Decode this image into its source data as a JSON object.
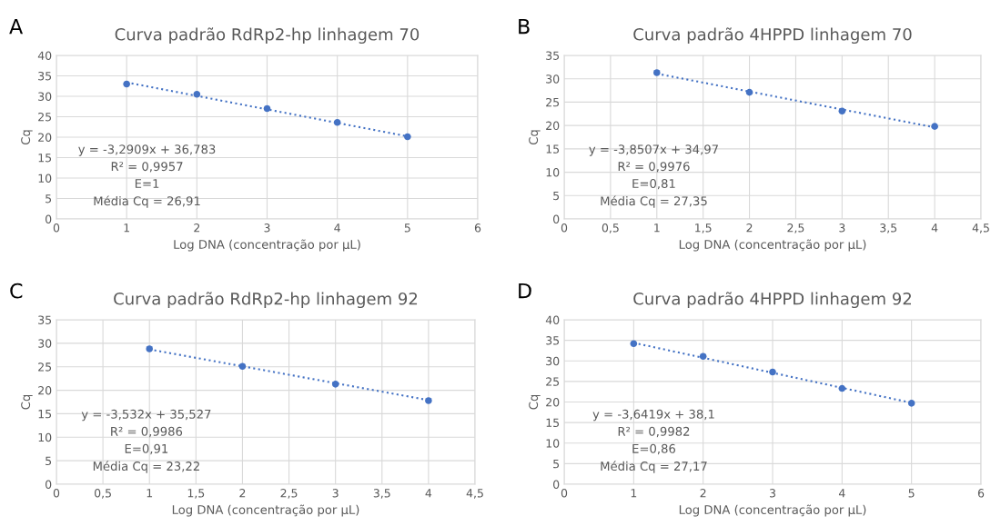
{
  "chart_data": [
    {
      "type": "scatter",
      "title": "Curva padrão RdRp2-hp linhagem 70",
      "xlabel": "Log DNA (concentração por µL)",
      "ylabel": "Cq",
      "annotations": [
        "A",
        "y = -3,2909x + 36,783",
        "R² = 0,9957",
        "E=1",
        "Média Cq = 26,91"
      ],
      "x": [
        1,
        2,
        3,
        4,
        5
      ],
      "series": [
        {
          "color": "#4472c4",
          "marker": "circle",
          "values": [
            33.0,
            30.5,
            27.0,
            23.6,
            20.1
          ]
        },
        {
          "type": "line",
          "color": "#4472c4",
          "line_style": "dotted",
          "marker": "none",
          "x": [
            1,
            5
          ],
          "values": [
            33.4,
            20.2
          ]
        }
      ],
      "xlim": [
        0,
        6
      ],
      "xticks": [
        0,
        1,
        2,
        3,
        4,
        5,
        6
      ],
      "ylim": [
        0,
        40
      ],
      "yticks": [
        0,
        5,
        10,
        15,
        20,
        25,
        30,
        35,
        40
      ],
      "grid": true
    },
    {
      "type": "scatter",
      "title": "Curva padrão 4HPPD linhagem 70",
      "xlabel": "Log DNA (concentração por µL)",
      "ylabel": "Cq",
      "annotations": [
        "B",
        "y = -3,8507x + 34,97",
        "R² = 0,9976",
        "E=0,81",
        "Média Cq = 27,35"
      ],
      "x": [
        1,
        2,
        3,
        4
      ],
      "series": [
        {
          "color": "#4472c4",
          "marker": "circle",
          "values": [
            31.3,
            27.1,
            23.1,
            19.8
          ]
        },
        {
          "type": "line",
          "color": "#4472c4",
          "line_style": "dotted",
          "marker": "none",
          "x": [
            1,
            4
          ],
          "values": [
            31.1,
            19.6
          ]
        }
      ],
      "xlim": [
        0,
        4.5
      ],
      "xticks": [
        0,
        {
          "value": 0.5,
          "label": "0,5"
        },
        1,
        {
          "value": 1.5,
          "label": "1,5"
        },
        2,
        {
          "value": 2.5,
          "label": "2,5"
        },
        3,
        {
          "value": 3.5,
          "label": "3,5"
        },
        4,
        {
          "value": 4.5,
          "label": "4,5"
        }
      ],
      "ylim": [
        0,
        35
      ],
      "yticks": [
        0,
        5,
        10,
        15,
        20,
        25,
        30,
        35
      ],
      "grid": true
    },
    {
      "type": "scatter",
      "title": "Curva padrão RdRp2-hp linhagem 92",
      "xlabel": "Log DNA (concentração por µL)",
      "ylabel": "Cq",
      "annotations": [
        "C",
        "y = -3,532x + 35,527",
        "R² = 0,9986",
        "E=0,91",
        "Média Cq = 23,22"
      ],
      "x": [
        1,
        2,
        3,
        4
      ],
      "series": [
        {
          "color": "#4472c4",
          "marker": "circle",
          "values": [
            28.8,
            25.1,
            21.3,
            17.8
          ]
        },
        {
          "type": "line",
          "color": "#4472c4",
          "line_style": "dotted",
          "marker": "none",
          "x": [
            1,
            4
          ],
          "values": [
            28.7,
            17.9
          ]
        }
      ],
      "xlim": [
        0,
        4.5
      ],
      "xticks": [
        0,
        {
          "value": 0.5,
          "label": "0,5"
        },
        1,
        {
          "value": 1.5,
          "label": "1,5"
        },
        2,
        {
          "value": 2.5,
          "label": "2,5"
        },
        3,
        {
          "value": 3.5,
          "label": "3,5"
        },
        4,
        {
          "value": 4.5,
          "label": "4,5"
        }
      ],
      "ylim": [
        0,
        35
      ],
      "yticks": [
        0,
        5,
        10,
        15,
        20,
        25,
        30,
        35
      ],
      "grid": true
    },
    {
      "type": "scatter",
      "title": "Curva padrão 4HPPD linhagem 92",
      "xlabel": "Log DNA (concentração por µL)",
      "ylabel": "Cq",
      "annotations": [
        "D",
        "y = -3,6419x + 38,1",
        "R² = 0,9982",
        "E=0,86",
        "Média Cq = 27,17"
      ],
      "x": [
        1,
        2,
        3,
        4,
        5
      ],
      "series": [
        {
          "color": "#4472c4",
          "marker": "circle",
          "values": [
            34.2,
            31.1,
            27.3,
            23.3,
            19.7
          ]
        },
        {
          "type": "line",
          "color": "#4472c4",
          "line_style": "dotted",
          "marker": "none",
          "x": [
            1,
            5
          ],
          "values": [
            34.4,
            19.8
          ]
        }
      ],
      "xlim": [
        0,
        6
      ],
      "xticks": [
        0,
        1,
        2,
        3,
        4,
        5,
        6
      ],
      "ylim": [
        0,
        40
      ],
      "yticks": [
        0,
        5,
        10,
        15,
        20,
        25,
        30,
        35,
        40
      ],
      "grid": true
    }
  ]
}
